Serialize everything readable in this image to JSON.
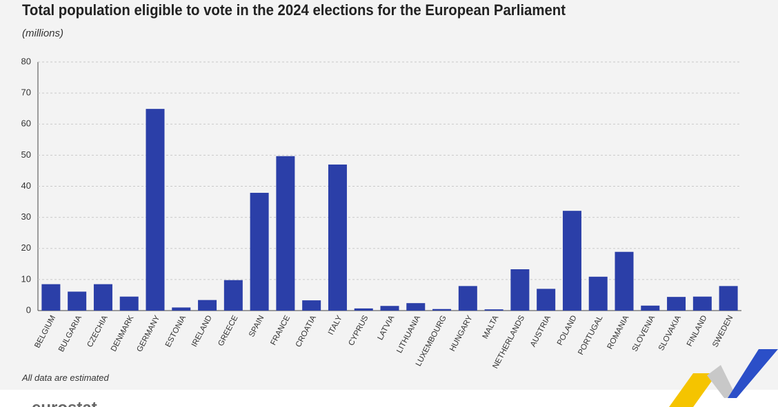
{
  "chart_data": {
    "type": "bar",
    "title": "Total population eligible to vote in the 2024 elections for the European Parliament",
    "subtitle": "(millions)",
    "categories": [
      "BELGIUM",
      "BULGARIA",
      "CZECHIA",
      "DENMARK",
      "GERMANY",
      "ESTONIA",
      "IRELAND",
      "GREECE",
      "SPAIN",
      "FRANCE",
      "CROATIA",
      "ITALY",
      "CYPRUS",
      "LATVIA",
      "LITHUANIA",
      "LUXEMBOURG",
      "HUNGARY",
      "MALTA",
      "NETHERLANDS",
      "AUSTRIA",
      "POLAND",
      "PORTUGAL",
      "ROMANIA",
      "SLOVENIA",
      "SLOVAKIA",
      "FINLAND",
      "SWEDEN"
    ],
    "values": [
      8.5,
      6.1,
      8.5,
      4.5,
      64.9,
      1.0,
      3.4,
      9.8,
      37.9,
      49.7,
      3.3,
      47.0,
      0.7,
      1.5,
      2.4,
      0.5,
      7.9,
      0.4,
      13.3,
      7.0,
      32.1,
      10.9,
      18.9,
      1.6,
      4.4,
      4.5,
      7.9
    ],
    "color": "#2b3fa8",
    "ylim": [
      0,
      80
    ],
    "yticks": [
      0,
      10,
      20,
      30,
      40,
      50,
      60,
      70,
      80
    ],
    "grid": true,
    "note": "All data are estimated",
    "logo": "eurostat"
  }
}
